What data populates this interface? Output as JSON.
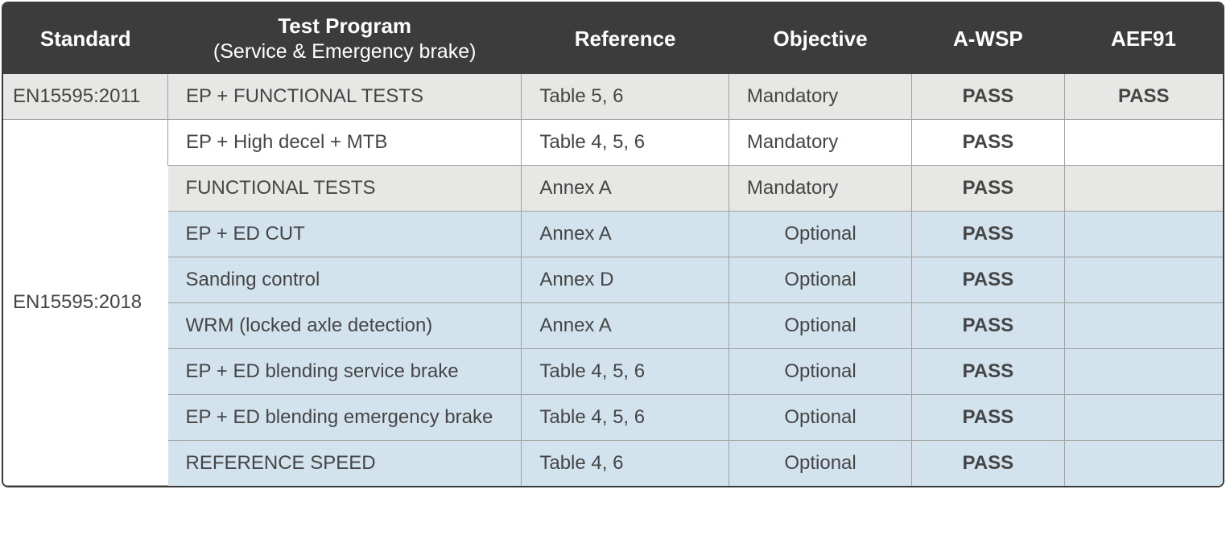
{
  "colors": {
    "header_bg": "#3c3c3c",
    "header_text": "#ffffff",
    "row_grey": "#e7e7e5",
    "row_white": "#ffffff",
    "row_blue": "#d3e3ee",
    "text": "#454545",
    "border": "#9fa0a0",
    "outer_border": "#3a3a3a"
  },
  "fonts": {
    "header_size_pt": 26,
    "subheader_size_pt": 25,
    "body_size_pt": 24,
    "header_weight": 700,
    "body_weight": 400
  },
  "header": {
    "standard": "Standard",
    "test_program": "Test Program",
    "test_program_sub": "(Service & Emergency brake)",
    "reference": "Reference",
    "objective": "Objective",
    "awsp": "A-WSP",
    "aef91": "AEF91"
  },
  "standards": {
    "s1": "EN15595:2011",
    "s2": "EN15595:2018"
  },
  "rows": [
    {
      "standard_key": "s1",
      "rowspan": 1,
      "program": "EP + FUNCTIONAL TESTS",
      "reference": "Table 5, 6",
      "objective": "Mandatory",
      "awsp": "PASS",
      "aef91": "PASS",
      "bg": "grey"
    },
    {
      "standard_key": "s2",
      "rowspan": 8,
      "program": "EP + High decel + MTB",
      "reference": "Table 4, 5, 6",
      "objective": "Mandatory",
      "awsp": "PASS",
      "aef91": "",
      "bg": "white"
    },
    {
      "program": "FUNCTIONAL TESTS",
      "reference": "Annex A",
      "objective": "Mandatory",
      "awsp": "PASS",
      "aef91": "",
      "bg": "grey"
    },
    {
      "program": "EP + ED CUT",
      "reference": "Annex A",
      "objective": "Optional",
      "awsp": "PASS",
      "aef91": "",
      "bg": "blue"
    },
    {
      "program": "Sanding control",
      "reference": "Annex D",
      "objective": "Optional",
      "awsp": "PASS",
      "aef91": "",
      "bg": "blue"
    },
    {
      "program": "WRM (locked axle detection)",
      "reference": "Annex A",
      "objective": "Optional",
      "awsp": "PASS",
      "aef91": "",
      "bg": "blue"
    },
    {
      "program": "EP + ED blending service brake",
      "reference": "Table 4, 5, 6",
      "objective": "Optional",
      "awsp": "PASS",
      "aef91": "",
      "bg": "blue"
    },
    {
      "program": "EP + ED blending emergency brake",
      "reference": "Table 4, 5, 6",
      "objective": "Optional",
      "awsp": "PASS",
      "aef91": "",
      "bg": "blue"
    },
    {
      "program": "REFERENCE SPEED",
      "reference": "Table 4, 6",
      "objective": "Optional",
      "awsp": "PASS",
      "aef91": "",
      "bg": "blue"
    }
  ],
  "column_widths_pct": {
    "standard": 13.5,
    "program": 29,
    "reference": 17,
    "objective": 15,
    "awsp": 12.5,
    "aef91": 13
  }
}
